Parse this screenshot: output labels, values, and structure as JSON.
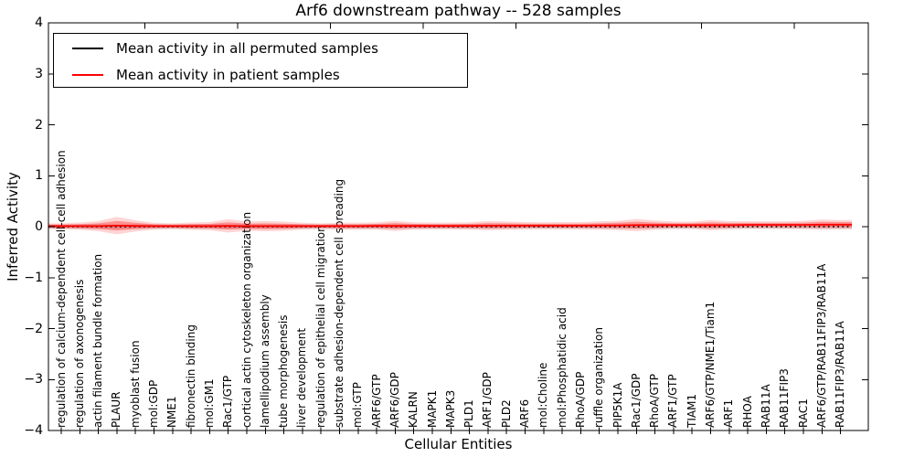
{
  "figure": {
    "title": "Arf6 downstream pathway -- 528 samples",
    "xlabel": "Cellular Entities",
    "ylabel": "Inferred Activity"
  },
  "legend": {
    "items": [
      {
        "label": "Mean activity in all permuted samples",
        "color": "#000000"
      },
      {
        "label": "Mean activity in patient samples",
        "color": "#ff0000"
      }
    ]
  },
  "chart_data": {
    "type": "line",
    "title": "Arf6 downstream pathway -- 528 samples",
    "xlabel": "Cellular Entities",
    "ylabel": "Inferred Activity",
    "ylim": [
      -4,
      4
    ],
    "yticks": [
      4,
      3,
      2,
      1,
      0,
      -1,
      -2,
      -3,
      -4
    ],
    "grid": false,
    "legend_position": "upper left",
    "categories": [
      "regulation of calcium-dependent cell-cell adhesion",
      "regulation of axonogenesis",
      "actin filament bundle formation",
      "PLAUR",
      "myoblast fusion",
      "mol:GDP",
      "NME1",
      "fibronectin binding",
      "mol:GM1",
      "Rac1/GTP",
      "cortical actin cytoskeleton organization",
      "lamellipodium assembly",
      "tube morphogenesis",
      "liver development",
      "regulation of epithelial cell migration",
      "substrate adhesion-dependent cell spreading",
      "mol:GTP",
      "ARF6/GTP",
      "ARF6/GDP",
      "KALRN",
      "MAPK1",
      "MAPK3",
      "PLD1",
      "ARF1/GDP",
      "PLD2",
      "ARF6",
      "mol:Choline",
      "mol:Phosphatidic acid",
      "RhoA/GDP",
      "ruffle organization",
      "PIP5K1A",
      "Rac1/GDP",
      "RhoA/GTP",
      "ARF1/GTP",
      "TIAM1",
      "ARF6/GTP/NME1/Tiam1",
      "ARF1",
      "RHOA",
      "RAB11A",
      "RAB11FIP3",
      "RAC1",
      "ARF6/GTP/RAB11FIP3/RAB11A",
      "RAB11FIP3/RAB11A"
    ],
    "series": [
      {
        "name": "Mean activity in all permuted samples",
        "color": "#000000",
        "linestyle": "dotted",
        "mean": 0.0,
        "band_halfwidth": 0.045
      },
      {
        "name": "Mean activity in patient samples",
        "color": "#ff0000",
        "linestyle": "solid",
        "values": [
          0.01,
          0.01,
          0.01,
          0.02,
          0.015,
          0.01,
          0.01,
          0.01,
          0.01,
          0.015,
          0.01,
          0.01,
          0.01,
          0.01,
          0.01,
          0.01,
          0.01,
          0.015,
          0.015,
          0.015,
          0.015,
          0.015,
          0.015,
          0.02,
          0.02,
          0.02,
          0.02,
          0.02,
          0.02,
          0.025,
          0.025,
          0.03,
          0.03,
          0.03,
          0.03,
          0.03,
          0.03,
          0.035,
          0.035,
          0.035,
          0.035,
          0.04,
          0.04
        ],
        "band_halfwidth_values": [
          0.055,
          0.07,
          0.1,
          0.17,
          0.11,
          0.065,
          0.055,
          0.07,
          0.08,
          0.13,
          0.09,
          0.1,
          0.09,
          0.065,
          0.055,
          0.065,
          0.065,
          0.07,
          0.1,
          0.07,
          0.065,
          0.065,
          0.07,
          0.09,
          0.08,
          0.07,
          0.065,
          0.07,
          0.07,
          0.08,
          0.09,
          0.12,
          0.09,
          0.07,
          0.07,
          0.1,
          0.08,
          0.07,
          0.07,
          0.07,
          0.08,
          0.1,
          0.09
        ]
      }
    ]
  }
}
